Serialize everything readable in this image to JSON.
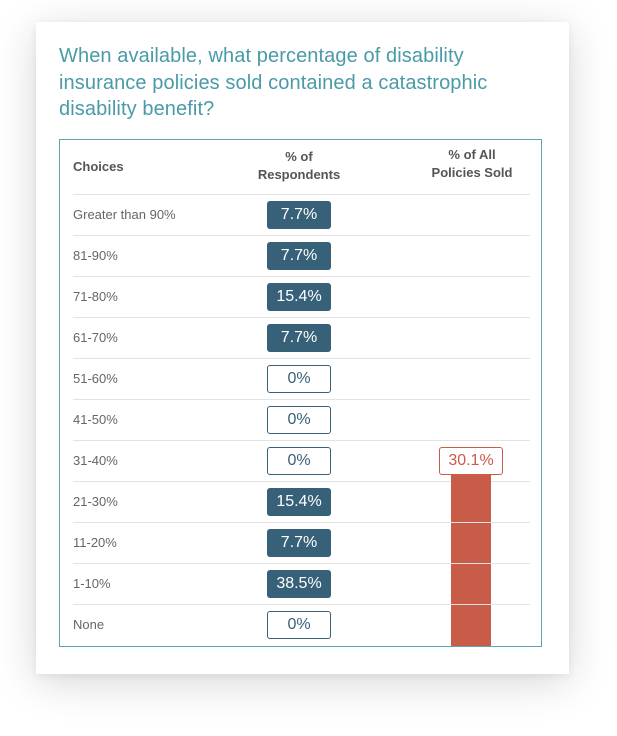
{
  "question": "When available, what percentage of disability insurance policies sold contained a catastrophic disability benefit?",
  "table": {
    "col_choices": "Choices",
    "col_respondents": "% of\nRespondents",
    "col_policies": "% of All\nPolicies Sold"
  },
  "colors": {
    "respondents": "#376079",
    "policies": "#c95c49",
    "title": "#4a9aa8"
  },
  "chart_data": {
    "type": "table",
    "title": "When available, what percentage of disability insurance policies sold contained a catastrophic disability benefit?",
    "columns": [
      "Choices",
      "% of Respondents",
      "% of All Policies Sold"
    ],
    "rows": [
      {
        "choice": "Greater than 90%",
        "respondents": "7.7%",
        "policies": ""
      },
      {
        "choice": "81-90%",
        "respondents": "7.7%",
        "policies": ""
      },
      {
        "choice": "71-80%",
        "respondents": "15.4%",
        "policies": ""
      },
      {
        "choice": "61-70%",
        "respondents": "7.7%",
        "policies": ""
      },
      {
        "choice": "51-60%",
        "respondents": "0%",
        "policies": ""
      },
      {
        "choice": "41-50%",
        "respondents": "0%",
        "policies": ""
      },
      {
        "choice": "31-40%",
        "respondents": "0%",
        "policies": "30.1%"
      },
      {
        "choice": "21-30%",
        "respondents": "15.4%",
        "policies": ""
      },
      {
        "choice": "11-20%",
        "respondents": "7.7%",
        "policies": ""
      },
      {
        "choice": "1-10%",
        "respondents": "38.5%",
        "policies": ""
      },
      {
        "choice": "None",
        "respondents": "0%",
        "policies": ""
      }
    ]
  }
}
